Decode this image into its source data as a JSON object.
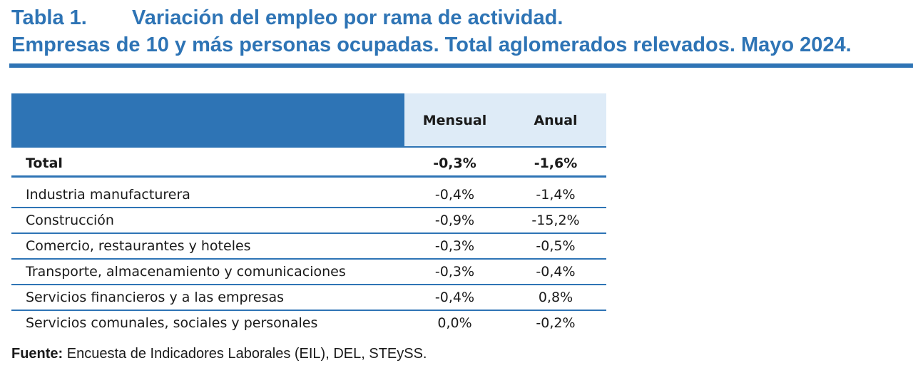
{
  "title": {
    "number": "Tabla 1.",
    "line1": "Variación del empleo por rama de actividad.",
    "line2": "Empresas de 10 y más personas ocupadas. Total aglomerados relevados. Mayo 2024."
  },
  "table": {
    "headers": [
      "Mensual",
      "Anual"
    ],
    "total": {
      "label": "Total",
      "mensual": "-0,3%",
      "anual": "-1,6%"
    },
    "rows": [
      {
        "label": "Industria manufacturera",
        "mensual": "-0,4%",
        "anual": "-1,4%"
      },
      {
        "label": "Construcción",
        "mensual": "-0,9%",
        "anual": "-15,2%"
      },
      {
        "label": "Comercio, restaurantes y hoteles",
        "mensual": "-0,3%",
        "anual": "-0,5%"
      },
      {
        "label": "Transporte, almacenamiento y comunicaciones",
        "mensual": "-0,3%",
        "anual": "-0,4%"
      },
      {
        "label": "Servicios financieros y a las empresas",
        "mensual": "-0,4%",
        "anual": "0,8%"
      },
      {
        "label": "Servicios comunales, sociales y personales",
        "mensual": "0,0%",
        "anual": "-0,2%"
      }
    ]
  },
  "footer": {
    "label": "Fuente:",
    "text": " Encuesta de Indicadores Laborales (EIL), DEL, STEySS."
  },
  "colors": {
    "accent": "#2E74B5",
    "header_light": "#DEEBF7"
  }
}
